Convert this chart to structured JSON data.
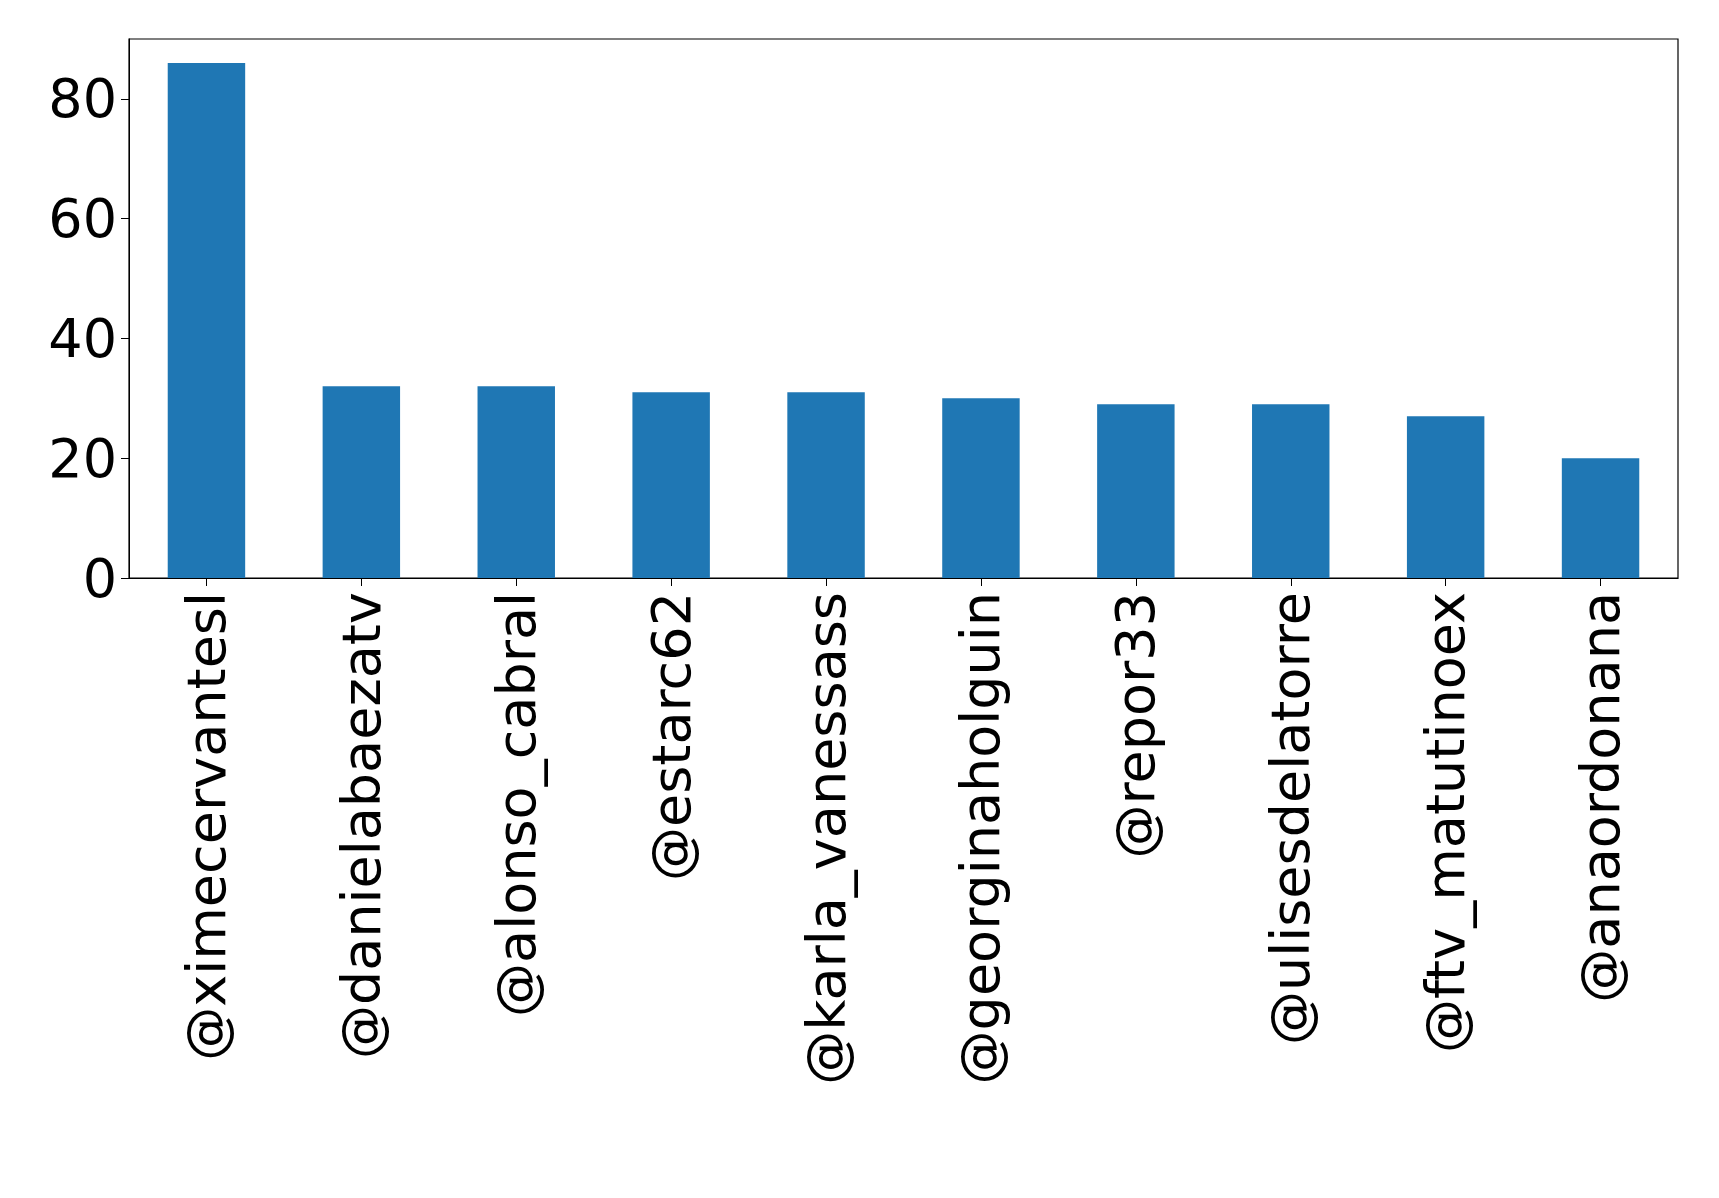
{
  "chart_data": {
    "type": "bar",
    "categories": [
      "@ximecervantesl",
      "@danielabaezatv",
      "@alonso_cabral",
      "@estarc62",
      "@karla_vanessass",
      "@georginaholguin",
      "@repor33",
      "@ulisesdelatorre",
      "@ftv_matutinoex",
      "@anaordonana"
    ],
    "values": [
      86,
      32,
      32,
      31,
      31,
      30,
      29,
      29,
      27,
      20
    ],
    "color": "#1f77b4",
    "ylim": [
      0,
      90
    ],
    "yticks": [
      0,
      20,
      40,
      60,
      80
    ],
    "grid": false
  }
}
